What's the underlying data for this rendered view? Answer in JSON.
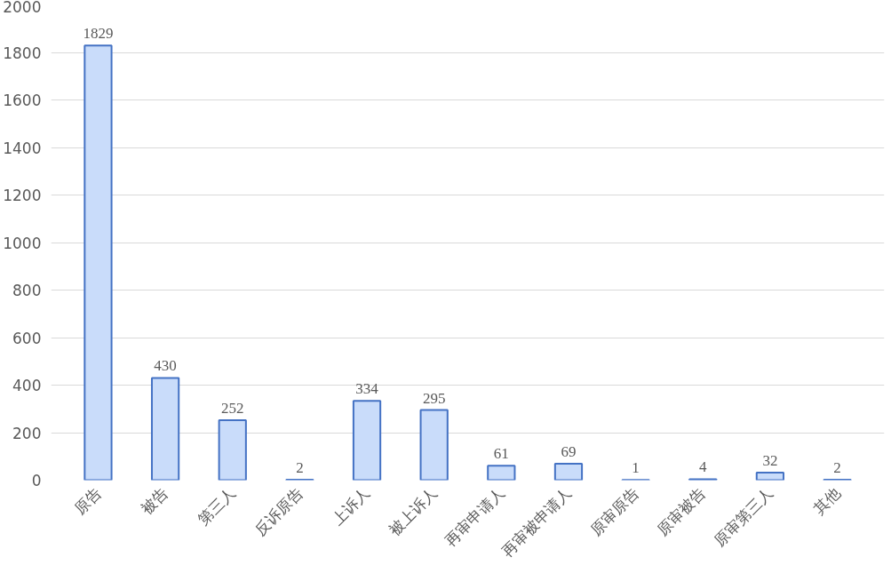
{
  "chart_data": {
    "type": "bar",
    "categories": [
      "原告",
      "被告",
      "第三人",
      "反诉原告",
      "上诉人",
      "被上诉人",
      "再审申请人",
      "再审被申请人",
      "原审原告",
      "原审被告",
      "原审第三人",
      "其他"
    ],
    "values": [
      1829,
      430,
      252,
      2,
      334,
      295,
      61,
      69,
      1,
      4,
      32,
      2
    ],
    "color": "#c9dcfa",
    "ylim": [
      0,
      2000
    ],
    "yticks": [
      0,
      200,
      400,
      600,
      800,
      1000,
      1200,
      1400,
      1600,
      1800,
      2000
    ],
    "grid": "y",
    "data_labels": true
  }
}
